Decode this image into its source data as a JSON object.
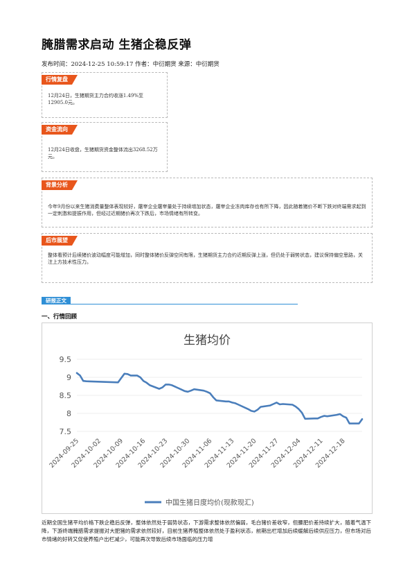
{
  "article": {
    "title": "腌腊需求启动 生猪企稳反弹",
    "meta": "发布时间：2024-12-25 10:59:17 作者：中衍期货 来源：中衍期货"
  },
  "sections": [
    {
      "tag": "行情复盘",
      "text": "12月24日，生猪期货主力合约收涨1.49%至12905.0元。"
    },
    {
      "tag": "资金流向",
      "text": "12月24日收盘，生猪期货资金整体流出3268.52万元。"
    },
    {
      "tag": "背景分析",
      "text": "今年9月份以来生猪消费量整体表现较好，屠宰企业屠宰量处于持续增加状态，屠宰企业冻肉库存也有所下降，因此随着猪价不断下跌对终端需求起到一定刺激和提振作用，但经过近期猪价再次下跌后，市场情绪有所转变。"
    },
    {
      "tag": "后市展望",
      "text": "整体看预计后续猪价波动幅度可能增加，同时整体猪价反弹空间有限，生猪期货主力合约近期反弹上涨，但仍处于弱势状态，建议保持偏空思路，关注上方技术性压力。"
    }
  ],
  "research": {
    "tag": "研报正文",
    "heading": "一、行情回顾",
    "paragraph": "近期全国生猪平均价格下跌企稳后反弹，整体依然处于弱势状态，下游需求整体依然偏弱，毛白猪价差收窄，但腰肥价差持续扩大，随着气温下降，下游终端腌腊需求提振对大肥猪的需求依然较好，目前生猪养殖整体依然处于盈利状态，前期出栏增加后续缓解后续供应压力，但市场对后市情绪的好转又促使养殖户出栏减少，可能再次导致后续市场面临的压力增"
  },
  "chart_data": {
    "type": "line",
    "title": "生猪均价",
    "ylim": [
      7.5,
      9.5
    ],
    "yticks": [
      "9.5",
      "9",
      "8.5",
      "8",
      "7.5"
    ],
    "xticks": [
      "2024-09-25",
      "2024-10-02",
      "2024-10-09",
      "2024-10-16",
      "2024-10-23",
      "2024-10-30",
      "2024-11-06",
      "2024-11-13",
      "2024-11-20",
      "2024-11-27",
      "2024-12-04",
      "2024-12-11",
      "2024-12-18"
    ],
    "series": [
      {
        "name": "中国生猪日度均价(现款现汇)",
        "color": "#4a7ebb",
        "x": [
          "2024-09-25",
          "2024-09-26",
          "2024-09-27",
          "2024-09-28",
          "2024-10-08",
          "2024-10-09",
          "2024-10-10",
          "2024-10-11",
          "2024-10-12",
          "2024-10-14",
          "2024-10-15",
          "2024-10-16",
          "2024-10-17",
          "2024-10-18",
          "2024-10-21",
          "2024-10-22",
          "2024-10-23",
          "2024-10-24",
          "2024-10-25",
          "2024-10-28",
          "2024-10-29",
          "2024-10-30",
          "2024-10-31",
          "2024-11-01",
          "2024-11-04",
          "2024-11-05",
          "2024-11-06",
          "2024-11-07",
          "2024-11-08",
          "2024-11-11",
          "2024-11-12",
          "2024-11-13",
          "2024-11-14",
          "2024-11-15",
          "2024-11-18",
          "2024-11-19",
          "2024-11-20",
          "2024-11-21",
          "2024-11-22",
          "2024-11-25",
          "2024-11-26",
          "2024-11-27",
          "2024-11-28",
          "2024-11-29",
          "2024-12-02",
          "2024-12-03",
          "2024-12-04",
          "2024-12-05",
          "2024-12-06",
          "2024-12-09",
          "2024-12-10",
          "2024-12-11",
          "2024-12-12",
          "2024-12-13",
          "2024-12-16",
          "2024-12-17",
          "2024-12-18",
          "2024-12-19",
          "2024-12-20",
          "2024-12-23",
          "2024-12-24"
        ],
        "values": [
          9.12,
          9.05,
          8.9,
          8.89,
          8.86,
          8.98,
          9.1,
          9.09,
          9.05,
          9.05,
          9.0,
          8.9,
          8.85,
          8.78,
          8.68,
          8.72,
          8.8,
          8.8,
          8.78,
          8.66,
          8.62,
          8.6,
          8.63,
          8.67,
          8.63,
          8.6,
          8.56,
          8.45,
          8.36,
          8.33,
          8.33,
          8.3,
          8.28,
          8.24,
          8.12,
          8.07,
          8.05,
          8.1,
          8.18,
          8.22,
          8.26,
          8.3,
          8.25,
          8.26,
          8.24,
          8.19,
          8.12,
          8.02,
          7.85,
          7.86,
          7.86,
          7.9,
          7.93,
          7.92,
          7.96,
          7.98,
          7.92,
          7.88,
          7.72,
          7.72,
          7.84
        ]
      }
    ]
  }
}
